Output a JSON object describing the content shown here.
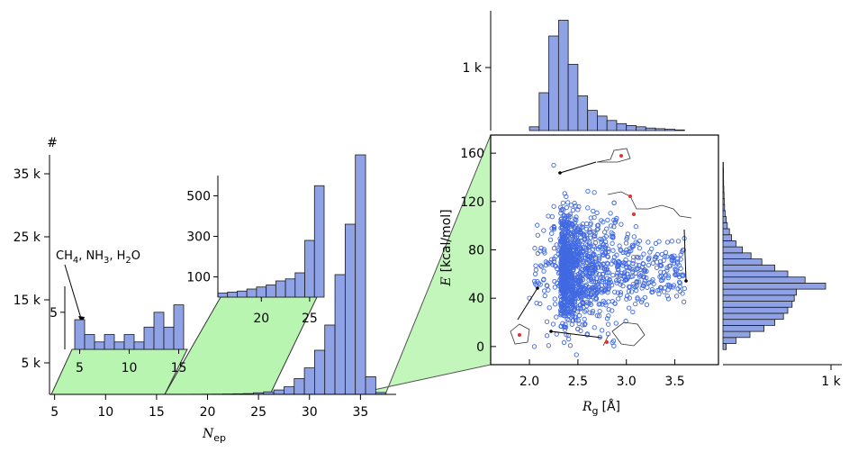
{
  "colors": {
    "bar": "#8fa2e6",
    "bar_edge": "#1a1a1a",
    "scatter": "#4169e1",
    "zoom": "#b8f5b0",
    "zoom_edge": "#333333",
    "molecule_o": "#e03030"
  },
  "chart_data": [
    {
      "id": "main",
      "type": "bar",
      "ylabel": "#",
      "xlabel_main": "N",
      "xlabel_sub": "ep",
      "x_ticks": [
        5,
        10,
        15,
        20,
        25,
        30,
        35
      ],
      "y_ticks": [
        5000,
        15000,
        25000,
        35000
      ],
      "y_tick_labels": [
        "5 k",
        "15 k",
        "25 k",
        "35 k"
      ],
      "xlim": [
        4.5,
        38.5
      ],
      "ylim": [
        0,
        38000
      ],
      "x": [
        10,
        11,
        12,
        13,
        14,
        15,
        16,
        17,
        18,
        19,
        20,
        21,
        22,
        23,
        24,
        25,
        26,
        27,
        28,
        29,
        30,
        31,
        32,
        33,
        34,
        35,
        36,
        37
      ],
      "values": [
        1,
        2,
        3,
        4,
        5,
        7,
        9,
        12,
        15,
        20,
        30,
        40,
        60,
        90,
        120,
        250,
        400,
        700,
        1200,
        2500,
        4200,
        7000,
        11000,
        19000,
        27000,
        38000,
        2800,
        300
      ]
    },
    {
      "id": "inset1",
      "type": "bar",
      "annotation": [
        "CH",
        "4",
        ", NH",
        "3",
        ", H",
        "2",
        "O"
      ],
      "x_ticks": [
        5,
        10,
        15
      ],
      "y_ticks": [
        5
      ],
      "xlim": [
        3.5,
        16.5
      ],
      "ylim": [
        0,
        8.5
      ],
      "x": [
        5,
        6,
        7,
        8,
        9,
        10,
        11,
        12,
        13,
        14,
        15
      ],
      "values": [
        4,
        2,
        1,
        2,
        1,
        2,
        1,
        3,
        5,
        3,
        6
      ]
    },
    {
      "id": "inset2",
      "type": "bar",
      "x_ticks": [
        20,
        25
      ],
      "y_ticks": [
        100,
        300,
        500
      ],
      "xlim": [
        15.5,
        26.5
      ],
      "ylim": [
        0,
        600
      ],
      "x": [
        16,
        17,
        18,
        19,
        20,
        21,
        22,
        23,
        24,
        25,
        26
      ],
      "values": [
        20,
        25,
        30,
        40,
        50,
        60,
        80,
        90,
        120,
        280,
        550
      ]
    },
    {
      "id": "scatter",
      "type": "scatter",
      "xlabel_main": "R",
      "xlabel_sub": "g",
      "xlabel_unit": "[Å]",
      "ylabel_main": "E",
      "ylabel_unit": "[kcal/mol]",
      "x_ticks": [
        2.0,
        2.5,
        3.0,
        3.5
      ],
      "x_tick_labels": [
        "2.0",
        "2.5",
        "3.0",
        "3.5"
      ],
      "y_ticks": [
        0,
        40,
        80,
        120,
        160
      ],
      "xlim": [
        1.6,
        3.95
      ],
      "ylim": [
        -15,
        175
      ],
      "outliers": [
        [
          2.25,
          150
        ],
        [
          3.6,
          48
        ],
        [
          2.0,
          40
        ],
        [
          2.05,
          0
        ]
      ]
    },
    {
      "id": "top_hist",
      "type": "bar",
      "y_ticks": [
        1000
      ],
      "y_tick_labels": [
        "1 k"
      ],
      "xlim": [
        1.6,
        3.95
      ],
      "ylim": [
        0,
        1900
      ],
      "x": [
        2.05,
        2.15,
        2.25,
        2.35,
        2.45,
        2.55,
        2.65,
        2.75,
        2.85,
        2.95,
        3.05,
        3.15,
        3.25,
        3.35,
        3.45,
        3.55
      ],
      "values": [
        60,
        600,
        1500,
        1750,
        1050,
        550,
        320,
        230,
        160,
        110,
        80,
        60,
        40,
        30,
        20,
        10
      ]
    },
    {
      "id": "right_hist",
      "type": "bar",
      "orientation": "horizontal",
      "x_ticks": [
        1000
      ],
      "x_tick_labels": [
        "1 k"
      ],
      "xlim": [
        0,
        1100
      ],
      "ylim": [
        -15,
        175
      ],
      "y": [
        0,
        5,
        10,
        15,
        20,
        25,
        30,
        35,
        40,
        45,
        50,
        55,
        60,
        65,
        70,
        75,
        80,
        85,
        90,
        95,
        100,
        105,
        110,
        115,
        120,
        125,
        130,
        135,
        140,
        145,
        150
      ],
      "values": [
        30,
        120,
        250,
        380,
        480,
        560,
        600,
        640,
        660,
        680,
        950,
        760,
        600,
        480,
        360,
        260,
        180,
        120,
        80,
        60,
        40,
        30,
        20,
        15,
        12,
        10,
        8,
        6,
        5,
        5,
        4
      ]
    }
  ]
}
